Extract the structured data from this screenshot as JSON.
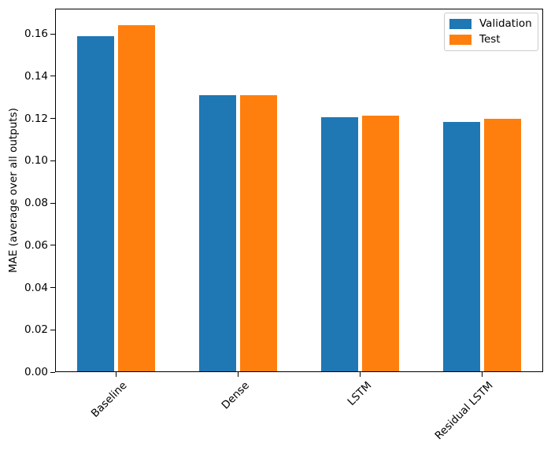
{
  "chart_data": {
    "type": "bar",
    "title": "",
    "xlabel": "",
    "ylabel": "MAE (average over all outputs)",
    "categories": [
      "Baseline",
      "Dense",
      "LSTM",
      "Residual LSTM"
    ],
    "series": [
      {
        "name": "Validation",
        "color": "#1f77b4",
        "values": [
          0.159,
          0.131,
          0.1205,
          0.1185
        ]
      },
      {
        "name": "Test",
        "color": "#ff7f0e",
        "values": [
          0.164,
          0.131,
          0.1215,
          0.12
        ]
      }
    ],
    "ylim": [
      0,
      0.172
    ],
    "yticks": [
      0.0,
      0.02,
      0.04,
      0.06,
      0.08,
      0.1,
      0.12,
      0.14,
      0.16
    ],
    "ytick_decimals": 2,
    "xtick_rotation_deg": 45,
    "grid": false,
    "legend_position": "upper-right",
    "spine_color": "#000000",
    "background_color": "#ffffff"
  }
}
